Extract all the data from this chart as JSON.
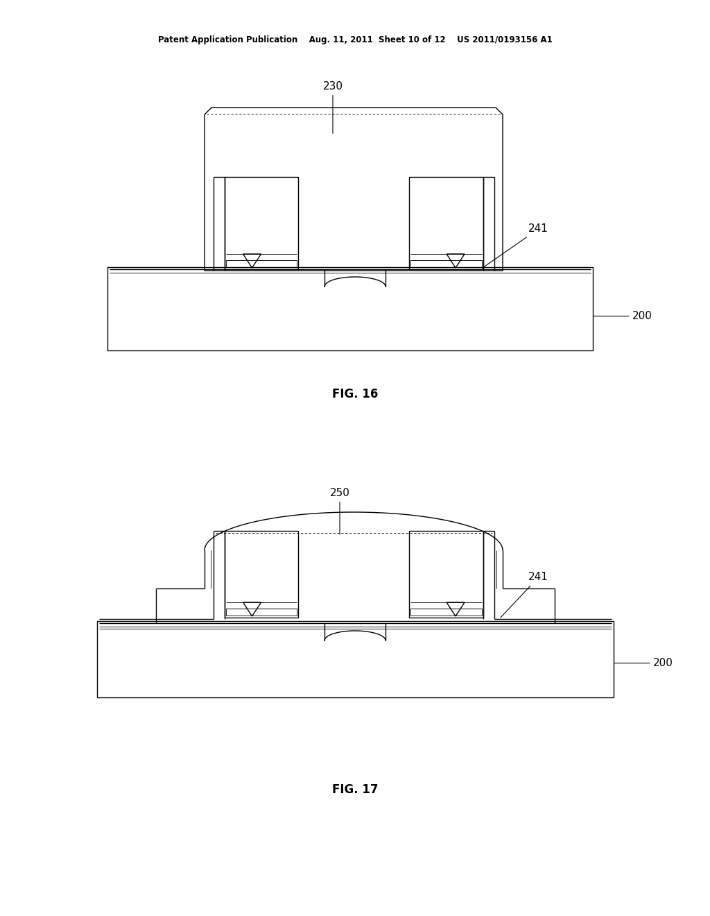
{
  "bg_color": "#ffffff",
  "line_color": "#000000",
  "lw": 1.0,
  "lw_thick": 1.5,
  "lw_thin": 0.6,
  "header": "Patent Application Publication    Aug. 11, 2011  Sheet 10 of 12    US 2011/0193156 A1",
  "fig16_label": "FIG. 16",
  "fig17_label": "FIG. 17"
}
